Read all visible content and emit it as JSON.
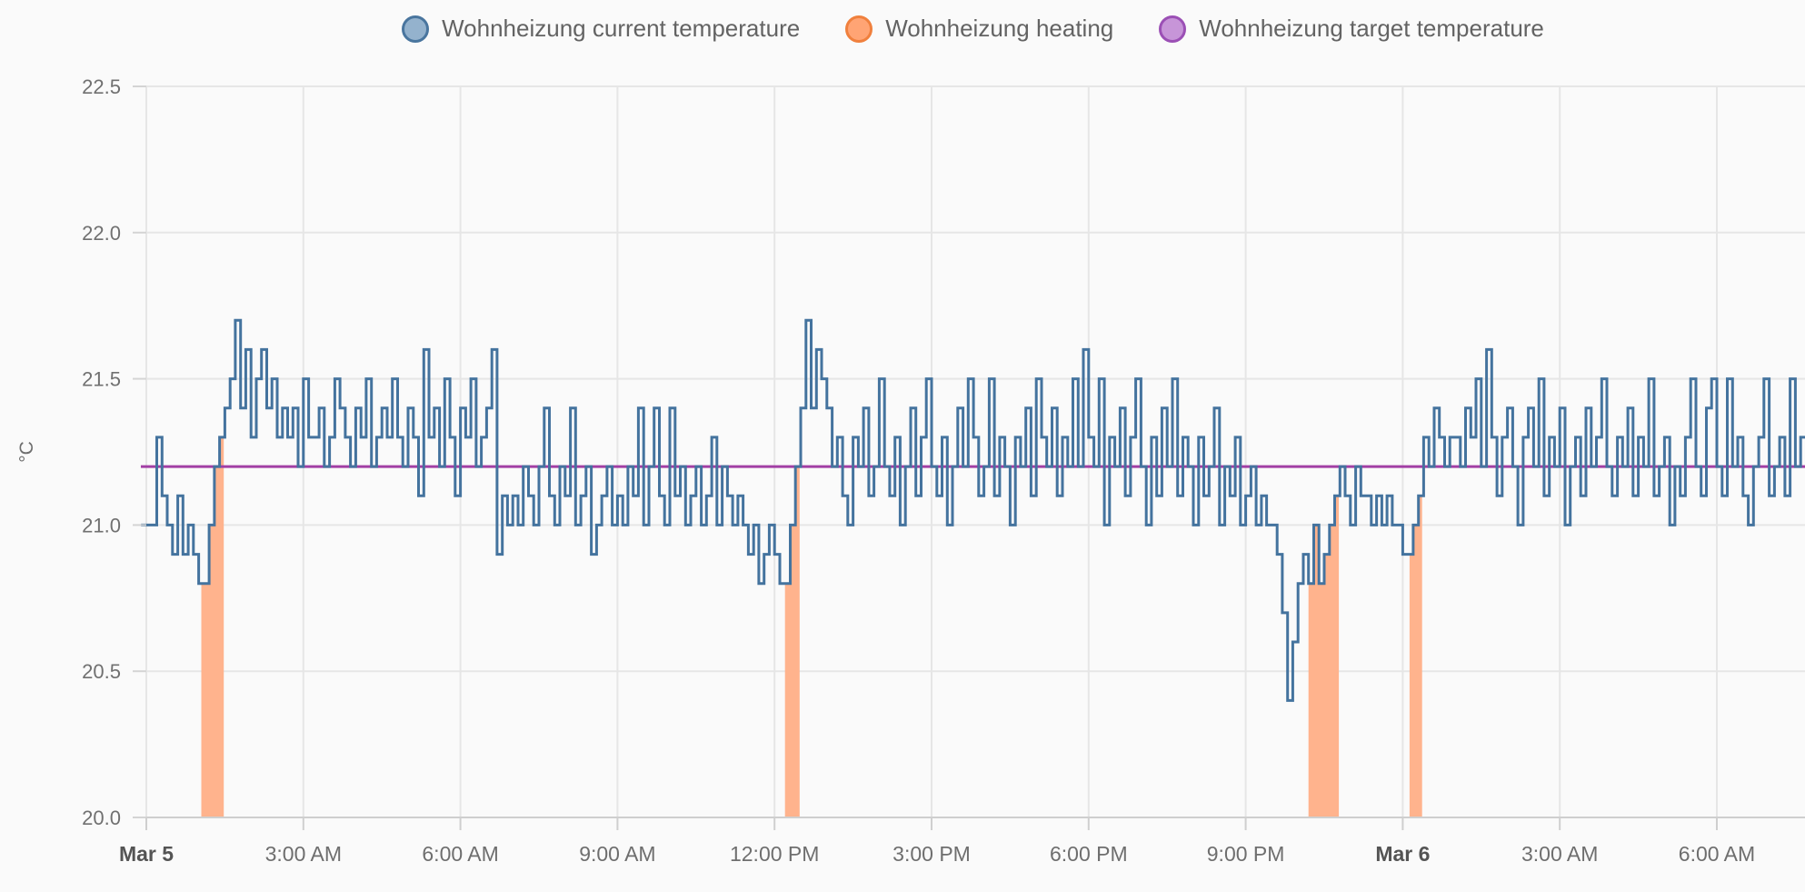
{
  "chart_data": {
    "type": "line",
    "title": "",
    "ylabel": "°C",
    "ylim": [
      20.0,
      22.5
    ],
    "grid": true,
    "legend_position": "top",
    "x_range_hours_from_mar5_midnight": [
      -0.105,
      31.7
    ],
    "y_ticks": [
      {
        "value": 22.5,
        "label": "22.5"
      },
      {
        "value": 22.0,
        "label": "22.0"
      },
      {
        "value": 21.5,
        "label": "21.5"
      },
      {
        "value": 21.0,
        "label": "21.0"
      },
      {
        "value": 20.5,
        "label": "20.5"
      },
      {
        "value": 20.0,
        "label": "20.0"
      }
    ],
    "x_ticks": [
      {
        "hour": 0,
        "label": "Mar 5",
        "bold": true
      },
      {
        "hour": 3,
        "label": "3:00 AM",
        "bold": false
      },
      {
        "hour": 6,
        "label": "6:00 AM",
        "bold": false
      },
      {
        "hour": 9,
        "label": "9:00 AM",
        "bold": false
      },
      {
        "hour": 12,
        "label": "12:00 PM",
        "bold": false
      },
      {
        "hour": 15,
        "label": "3:00 PM",
        "bold": false
      },
      {
        "hour": 18,
        "label": "6:00 PM",
        "bold": false
      },
      {
        "hour": 21,
        "label": "9:00 PM",
        "bold": false
      },
      {
        "hour": 24,
        "label": "Mar 6",
        "bold": true
      },
      {
        "hour": 27,
        "label": "3:00 AM",
        "bold": false
      },
      {
        "hour": 30,
        "label": "6:00 AM",
        "bold": false
      }
    ],
    "series": [
      {
        "name": "Wohnheizung current temperature",
        "render": "step-line",
        "color": "#44739e",
        "marker": {
          "fill": "#94b2cd",
          "stroke": "#49759e"
        },
        "t_start_hours": -0.1,
        "t_step_hours": 0.1,
        "values_tenths_degC": [
          210,
          210,
          210,
          213,
          211,
          210,
          209,
          211,
          209,
          210,
          209,
          208,
          208,
          210,
          212,
          213,
          214,
          215,
          217,
          214,
          216,
          213,
          215,
          216,
          214,
          215,
          213,
          214,
          213,
          214,
          212,
          215,
          213,
          213,
          214,
          212,
          213,
          215,
          214,
          213,
          212,
          214,
          213,
          215,
          212,
          213,
          214,
          213,
          215,
          213,
          212,
          214,
          213,
          211,
          216,
          213,
          214,
          212,
          215,
          213,
          211,
          214,
          213,
          215,
          212,
          213,
          214,
          216,
          209,
          211,
          210,
          211,
          210,
          212,
          211,
          210,
          212,
          214,
          211,
          210,
          212,
          211,
          214,
          210,
          211,
          212,
          209,
          210,
          211,
          212,
          210,
          211,
          210,
          212,
          211,
          214,
          210,
          212,
          214,
          211,
          210,
          214,
          211,
          212,
          210,
          211,
          212,
          210,
          211,
          213,
          210,
          212,
          211,
          210,
          211,
          210,
          209,
          210,
          208,
          209,
          210,
          209,
          208,
          208,
          210,
          212,
          214,
          217,
          214,
          216,
          215,
          214,
          212,
          213,
          211,
          210,
          213,
          212,
          214,
          211,
          212,
          215,
          212,
          211,
          213,
          210,
          212,
          214,
          211,
          213,
          215,
          212,
          211,
          213,
          210,
          212,
          214,
          212,
          215,
          213,
          211,
          212,
          215,
          211,
          213,
          212,
          210,
          213,
          212,
          214,
          211,
          215,
          213,
          212,
          214,
          211,
          213,
          212,
          215,
          212,
          216,
          213,
          212,
          215,
          210,
          213,
          212,
          214,
          211,
          213,
          215,
          212,
          210,
          213,
          211,
          214,
          212,
          215,
          211,
          213,
          212,
          210,
          213,
          211,
          212,
          214,
          210,
          212,
          211,
          213,
          210,
          211,
          212,
          210,
          211,
          210,
          210,
          209,
          207,
          204,
          206,
          208,
          209,
          208,
          210,
          208,
          209,
          210,
          211,
          212,
          211,
          210,
          212,
          211,
          211,
          210,
          211,
          210,
          211,
          210,
          210,
          209,
          209,
          210,
          211,
          213,
          212,
          214,
          213,
          212,
          213,
          213,
          212,
          214,
          213,
          215,
          212,
          216,
          213,
          211,
          213,
          214,
          212,
          210,
          213,
          214,
          212,
          215,
          211,
          213,
          212,
          214,
          210,
          212,
          213,
          211,
          214,
          212,
          213,
          215,
          212,
          211,
          213,
          212,
          214,
          211,
          213,
          212,
          215,
          211,
          212,
          213,
          210,
          212,
          211,
          213,
          215,
          212,
          211,
          214,
          215,
          212,
          211,
          215,
          212,
          213,
          211,
          210,
          212,
          213,
          215,
          211,
          212,
          213,
          211,
          215,
          212,
          213,
          213
        ]
      },
      {
        "name": "Wohnheizung heating",
        "render": "area-under-current-temperature-while-on",
        "color": "#ffb38d",
        "marker": {
          "fill": "#ffa474",
          "stroke": "#f0803d"
        },
        "on_periods_hours": [
          [
            1.05,
            1.48
          ],
          [
            12.2,
            12.48
          ],
          [
            22.2,
            22.78
          ],
          [
            24.13,
            24.37
          ]
        ]
      },
      {
        "name": "Wohnheizung target temperature",
        "render": "horizontal-line",
        "color": "#a23fa5",
        "marker": {
          "fill": "#c795d8",
          "stroke": "#9b4fb5"
        },
        "value_degC": 21.2
      }
    ]
  }
}
